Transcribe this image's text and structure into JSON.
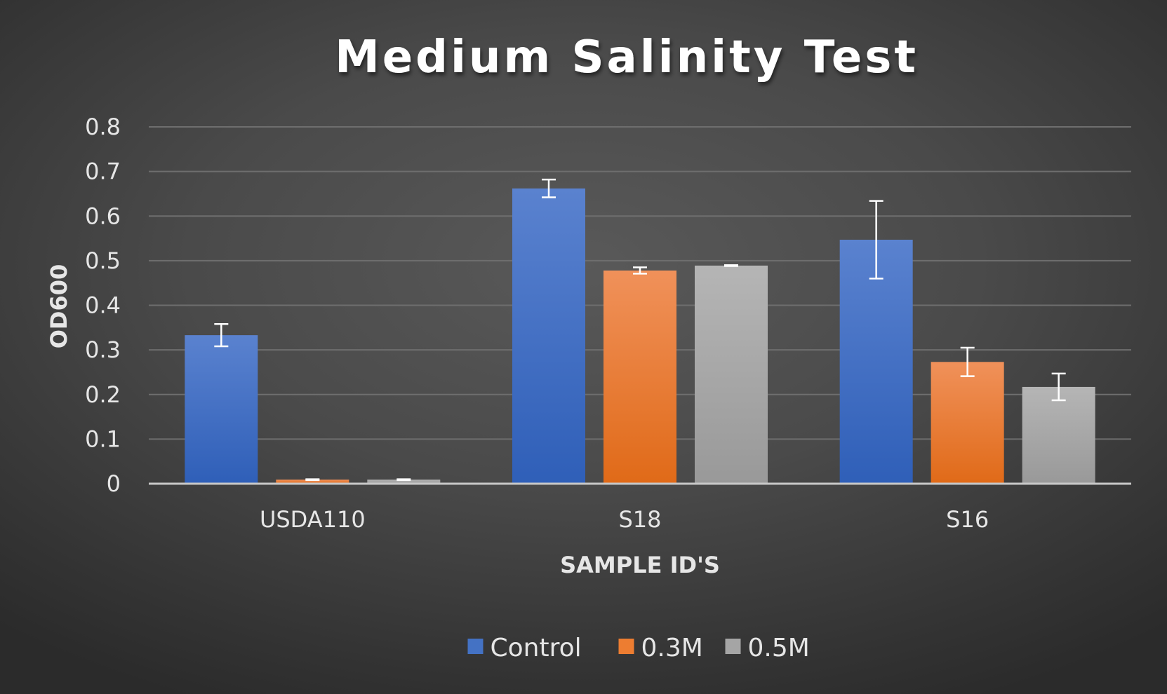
{
  "chart_data": {
    "type": "bar",
    "title": "Medium Salinity Test",
    "xlabel": "SAMPLE ID'S",
    "ylabel": "OD600",
    "categories": [
      "USDA110",
      "S18",
      "S16"
    ],
    "series": [
      {
        "name": "Control",
        "values": [
          0.333,
          0.662,
          0.547
        ],
        "errors": [
          0.025,
          0.02,
          0.087
        ],
        "color": "#4472C4"
      },
      {
        "name": "0.3M",
        "values": [
          0.009,
          0.478,
          0.273
        ],
        "errors": [
          0.001,
          0.007,
          0.032
        ],
        "color": "#ED7D31"
      },
      {
        "name": "0.5M",
        "values": [
          0.009,
          0.489,
          0.217
        ],
        "errors": [
          0.001,
          0.001,
          0.03
        ],
        "color": "#A5A5A5"
      }
    ],
    "ylim": [
      0,
      0.8
    ],
    "yticks": [
      "0",
      "0.1",
      "0.2",
      "0.3",
      "0.4",
      "0.5",
      "0.6",
      "0.7",
      "0.8"
    ],
    "grid": true,
    "legend_position": "bottom"
  }
}
